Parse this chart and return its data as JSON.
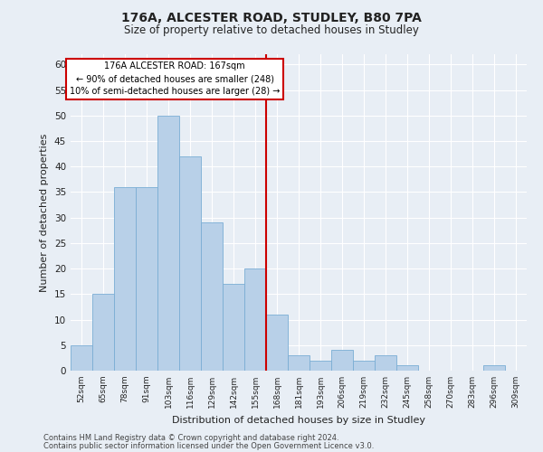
{
  "title1": "176A, ALCESTER ROAD, STUDLEY, B80 7PA",
  "title2": "Size of property relative to detached houses in Studley",
  "xlabel": "Distribution of detached houses by size in Studley",
  "ylabel": "Number of detached properties",
  "categories": [
    "52sqm",
    "65sqm",
    "78sqm",
    "91sqm",
    "103sqm",
    "116sqm",
    "129sqm",
    "142sqm",
    "155sqm",
    "168sqm",
    "181sqm",
    "193sqm",
    "206sqm",
    "219sqm",
    "232sqm",
    "245sqm",
    "258sqm",
    "270sqm",
    "283sqm",
    "296sqm",
    "309sqm"
  ],
  "values": [
    5,
    15,
    36,
    36,
    50,
    42,
    29,
    17,
    20,
    11,
    3,
    2,
    4,
    2,
    3,
    1,
    0,
    0,
    0,
    1,
    0
  ],
  "bar_color": "#b8d0e8",
  "bar_edge_color": "#7aadd4",
  "vline_index": 9,
  "annotation_text": "176A ALCESTER ROAD: 167sqm\n← 90% of detached houses are smaller (248)\n10% of semi-detached houses are larger (28) →",
  "annotation_box_color": "#ffffff",
  "annotation_box_edge_color": "#cc0000",
  "ylim": [
    0,
    62
  ],
  "yticks": [
    0,
    5,
    10,
    15,
    20,
    25,
    30,
    35,
    40,
    45,
    50,
    55,
    60
  ],
  "bg_color": "#e8eef5",
  "grid_color": "#ffffff",
  "footer1": "Contains HM Land Registry data © Crown copyright and database right 2024.",
  "footer2": "Contains public sector information licensed under the Open Government Licence v3.0."
}
